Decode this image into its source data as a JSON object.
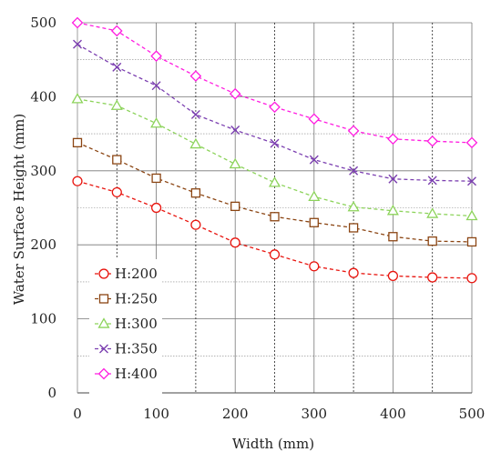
{
  "chart_data": {
    "type": "line",
    "xlabel": "Width (mm)",
    "ylabel": "Water Surface Height (mm)",
    "xlim": [
      0,
      500
    ],
    "ylim": [
      0,
      500
    ],
    "x_ticks": [
      0,
      100,
      200,
      300,
      400,
      500
    ],
    "y_ticks": [
      0,
      100,
      200,
      300,
      400,
      500
    ],
    "grid": true,
    "legend_position": "bottom-left",
    "x": [
      0,
      50,
      100,
      150,
      200,
      250,
      300,
      350,
      400,
      450,
      500
    ],
    "series": [
      {
        "name": "H:200",
        "marker": "circle",
        "color": "#e8150f",
        "values": [
          286,
          271,
          250,
          227,
          203,
          187,
          171,
          162,
          158,
          156,
          155
        ]
      },
      {
        "name": "H:250",
        "marker": "square",
        "color": "#8b4513",
        "values": [
          338,
          315,
          290,
          270,
          252,
          238,
          230,
          223,
          211,
          205,
          204
        ]
      },
      {
        "name": "H:300",
        "marker": "triangle",
        "color": "#8cd35a",
        "values": [
          397,
          388,
          364,
          336,
          309,
          284,
          265,
          251,
          246,
          242,
          239
        ]
      },
      {
        "name": "H:350",
        "marker": "x",
        "color": "#7b3fb0",
        "values": [
          471,
          440,
          415,
          376,
          355,
          337,
          315,
          300,
          289,
          287,
          286
        ]
      },
      {
        "name": "H:400",
        "marker": "diamond",
        "color": "#ff1de0",
        "values": [
          500,
          489,
          455,
          428,
          404,
          386,
          370,
          354,
          343,
          340,
          338
        ]
      }
    ]
  }
}
